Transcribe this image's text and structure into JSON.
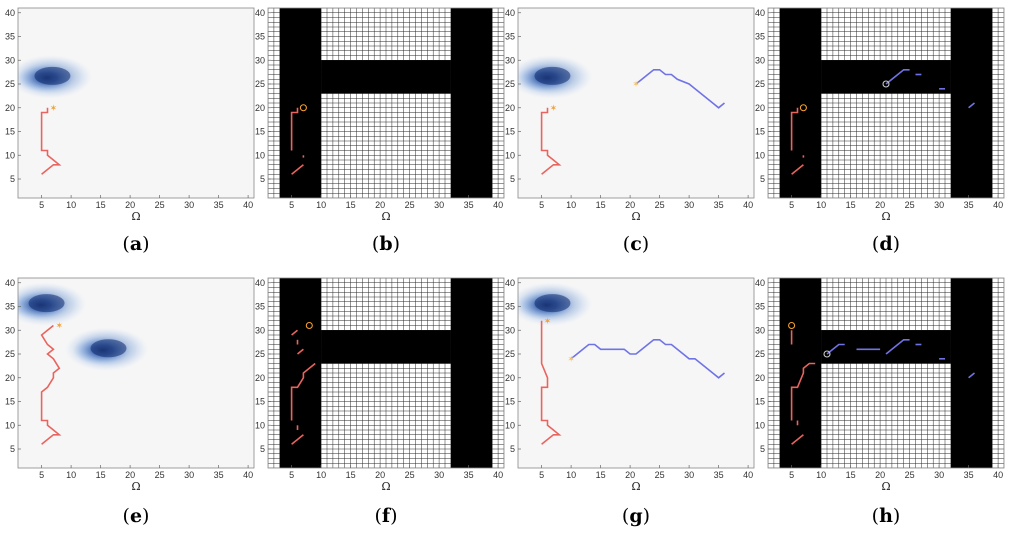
{
  "figure": {
    "x_axis_label": "Ω",
    "ticks": [
      "5",
      "10",
      "15",
      "20",
      "25",
      "30",
      "35",
      "40"
    ],
    "colors": {
      "red_path": "#e9645e",
      "blue_path": "#6f73e6",
      "start_marker": "#f2a033",
      "blob_dark": "#0e2a6e",
      "blob_light": "#bcd3f2",
      "obstacle": "#000000",
      "grid": "#2a2a2a"
    },
    "panels": [
      {
        "id": "a",
        "caption": "a",
        "kind": "density",
        "blobs": [
          {
            "x": 6.5,
            "y": 26.5
          }
        ],
        "red": [
          [
            5,
            6
          ],
          [
            7,
            8
          ],
          [
            8,
            8
          ],
          [
            7,
            9
          ],
          [
            6,
            10
          ],
          [
            6,
            11
          ],
          [
            5,
            11
          ],
          [
            5,
            19
          ],
          [
            6,
            19
          ],
          [
            6,
            20
          ]
        ],
        "red_start": [
          7,
          20
        ]
      },
      {
        "id": "b",
        "caption": "b",
        "kind": "map",
        "red_segments": [
          [
            [
              5,
              6
            ],
            [
              7,
              8
            ]
          ],
          [
            [
              7,
              9.5
            ],
            [
              7,
              10
            ]
          ],
          [
            [
              5,
              11
            ],
            [
              5,
              19
            ],
            [
              6,
              19
            ],
            [
              6,
              20
            ]
          ]
        ],
        "red_start": [
          7,
          20
        ]
      },
      {
        "id": "c",
        "caption": "c",
        "kind": "density",
        "blobs": [
          {
            "x": 6.5,
            "y": 26.5
          }
        ],
        "red": [
          [
            5,
            6
          ],
          [
            7,
            8
          ],
          [
            8,
            8
          ],
          [
            7,
            9
          ],
          [
            6,
            10
          ],
          [
            6,
            11
          ],
          [
            5,
            11
          ],
          [
            5,
            19
          ],
          [
            6,
            19
          ],
          [
            6,
            20
          ]
        ],
        "red_start": [
          7,
          20
        ],
        "blue": [
          [
            21,
            25
          ],
          [
            23,
            27
          ],
          [
            24,
            28
          ],
          [
            25,
            28
          ],
          [
            26,
            27
          ],
          [
            27,
            27
          ],
          [
            28,
            26
          ],
          [
            30,
            25
          ],
          [
            31,
            24
          ],
          [
            32,
            23
          ],
          [
            33,
            22
          ],
          [
            34,
            21
          ],
          [
            35,
            20
          ],
          [
            36,
            21
          ]
        ],
        "blue_start": [
          21,
          25
        ]
      },
      {
        "id": "d",
        "caption": "d",
        "kind": "map",
        "red_segments": [
          [
            [
              5,
              6
            ],
            [
              7,
              8
            ]
          ],
          [
            [
              7,
              9.5
            ],
            [
              7,
              10
            ]
          ],
          [
            [
              5,
              11
            ],
            [
              5,
              19
            ],
            [
              6,
              19
            ],
            [
              6,
              20
            ]
          ]
        ],
        "red_start": [
          7,
          20
        ],
        "blue_segments": [
          [
            [
              21,
              25
            ],
            [
              23,
              27
            ],
            [
              24,
              28
            ],
            [
              25,
              28
            ]
          ],
          [
            [
              26,
              27
            ],
            [
              27,
              27
            ]
          ],
          [
            [
              30,
              24
            ],
            [
              31,
              24
            ]
          ],
          [
            [
              35,
              20
            ],
            [
              36,
              21
            ]
          ]
        ],
        "blue_start": [
          21,
          25
        ]
      },
      {
        "id": "e",
        "caption": "e",
        "kind": "density",
        "blobs": [
          {
            "x": 5.5,
            "y": 35.5
          },
          {
            "x": 16,
            "y": 26
          }
        ],
        "red": [
          [
            5,
            6
          ],
          [
            7,
            8
          ],
          [
            8,
            8
          ],
          [
            7,
            9
          ],
          [
            6,
            10
          ],
          [
            6,
            11
          ],
          [
            5,
            11
          ],
          [
            5,
            17
          ],
          [
            6,
            18
          ],
          [
            7,
            20
          ],
          [
            7,
            21
          ],
          [
            8,
            22
          ],
          [
            7,
            24
          ],
          [
            6,
            25
          ],
          [
            7,
            26
          ],
          [
            6,
            27
          ],
          [
            5,
            29
          ],
          [
            6,
            30
          ],
          [
            7,
            31
          ]
        ],
        "red_start": [
          8,
          31
        ]
      },
      {
        "id": "f",
        "caption": "f",
        "kind": "map",
        "red_segments": [
          [
            [
              5,
              6
            ],
            [
              7,
              8
            ]
          ],
          [
            [
              6,
              9
            ],
            [
              6,
              10
            ]
          ],
          [
            [
              5,
              11
            ],
            [
              5,
              18
            ],
            [
              6,
              18
            ],
            [
              7,
              20
            ],
            [
              7,
              21
            ],
            [
              8,
              22
            ],
            [
              9,
              23
            ]
          ],
          [
            [
              6,
              25
            ],
            [
              7,
              26
            ]
          ],
          [
            [
              6,
              27
            ],
            [
              6,
              28
            ]
          ],
          [
            [
              5,
              29
            ],
            [
              6,
              30
            ]
          ]
        ],
        "red_start": [
          8,
          31
        ]
      },
      {
        "id": "g",
        "caption": "g",
        "kind": "density",
        "blobs": [
          {
            "x": 6.5,
            "y": 35.5
          }
        ],
        "red": [
          [
            5,
            6
          ],
          [
            7,
            8
          ],
          [
            8,
            8
          ],
          [
            7,
            9
          ],
          [
            6,
            10
          ],
          [
            6,
            11
          ],
          [
            5,
            11
          ],
          [
            5,
            18
          ],
          [
            6,
            18
          ],
          [
            6,
            20
          ],
          [
            5,
            23
          ],
          [
            5,
            32
          ]
        ],
        "red_start": [
          6,
          32
        ],
        "blue": [
          [
            10,
            24
          ],
          [
            11,
            25
          ],
          [
            12,
            26
          ],
          [
            13,
            27
          ],
          [
            14,
            27
          ],
          [
            15,
            26
          ],
          [
            16,
            26
          ],
          [
            17,
            26
          ],
          [
            18,
            26
          ],
          [
            19,
            26
          ],
          [
            20,
            25
          ],
          [
            21,
            25
          ],
          [
            22,
            26
          ],
          [
            23,
            27
          ],
          [
            24,
            28
          ],
          [
            25,
            28
          ],
          [
            26,
            27
          ],
          [
            27,
            27
          ],
          [
            28,
            26
          ],
          [
            29,
            25
          ],
          [
            30,
            24
          ],
          [
            31,
            24
          ],
          [
            32,
            23
          ],
          [
            33,
            22
          ],
          [
            34,
            21
          ],
          [
            35,
            20
          ],
          [
            36,
            21
          ]
        ],
        "blue_start": [
          10,
          24
        ]
      },
      {
        "id": "h",
        "caption": "h",
        "kind": "map",
        "red_segments": [
          [
            [
              5,
              6
            ],
            [
              7,
              8
            ]
          ],
          [
            [
              6,
              10
            ],
            [
              6,
              11
            ]
          ],
          [
            [
              5,
              11
            ],
            [
              5,
              18
            ],
            [
              6,
              18
            ],
            [
              7,
              21
            ],
            [
              7,
              22
            ],
            [
              8,
              23
            ],
            [
              9,
              23
            ]
          ],
          [
            [
              5,
              27
            ],
            [
              5,
              30
            ]
          ]
        ],
        "red_start": [
          5,
          31
        ],
        "blue_segments": [
          [
            [
              11,
              25
            ],
            [
              12,
              26
            ],
            [
              13,
              27
            ],
            [
              14,
              27
            ]
          ],
          [
            [
              16,
              26
            ],
            [
              20,
              26
            ]
          ],
          [
            [
              21,
              25
            ],
            [
              22,
              26
            ],
            [
              23,
              27
            ],
            [
              24,
              28
            ],
            [
              25,
              28
            ]
          ],
          [
            [
              26,
              27
            ],
            [
              27,
              27
            ]
          ],
          [
            [
              30,
              24
            ],
            [
              31,
              24
            ]
          ],
          [
            [
              35,
              20
            ],
            [
              36,
              21
            ]
          ]
        ],
        "blue_start": [
          11,
          25
        ]
      }
    ]
  }
}
